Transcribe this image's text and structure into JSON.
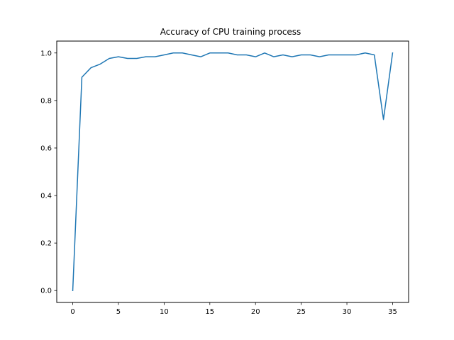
{
  "chart_data": {
    "type": "line",
    "title": "Accuracy of CPU training process",
    "xlabel": "",
    "ylabel": "",
    "xlim": [
      -1.75,
      36.75
    ],
    "ylim": [
      -0.05,
      1.05
    ],
    "xticks": [
      0,
      5,
      10,
      15,
      20,
      25,
      30,
      35
    ],
    "xtick_labels": [
      "0",
      "5",
      "10",
      "15",
      "20",
      "25",
      "30",
      "35"
    ],
    "yticks": [
      0.0,
      0.2,
      0.4,
      0.6,
      0.8,
      1.0
    ],
    "ytick_labels": [
      "0.0",
      "0.2",
      "0.4",
      "0.6",
      "0.8",
      "1.0"
    ],
    "grid": false,
    "legend": "none",
    "series": [
      {
        "color": "#1f77b4",
        "x": [
          0,
          1,
          2,
          3,
          4,
          5,
          6,
          7,
          8,
          9,
          10,
          11,
          12,
          13,
          14,
          15,
          16,
          17,
          18,
          19,
          20,
          21,
          22,
          23,
          24,
          25,
          26,
          27,
          28,
          29,
          30,
          31,
          32,
          33,
          34,
          35
        ],
        "values": [
          0.0,
          0.898,
          0.938,
          0.953,
          0.977,
          0.984,
          0.977,
          0.977,
          0.984,
          0.984,
          0.992,
          1.0,
          1.0,
          0.992,
          0.984,
          1.0,
          1.0,
          1.0,
          0.992,
          0.992,
          0.984,
          1.0,
          0.984,
          0.992,
          0.984,
          0.992,
          0.992,
          0.984,
          0.992,
          0.992,
          0.992,
          0.992,
          1.0,
          0.992,
          0.72,
          1.0
        ]
      }
    ]
  }
}
